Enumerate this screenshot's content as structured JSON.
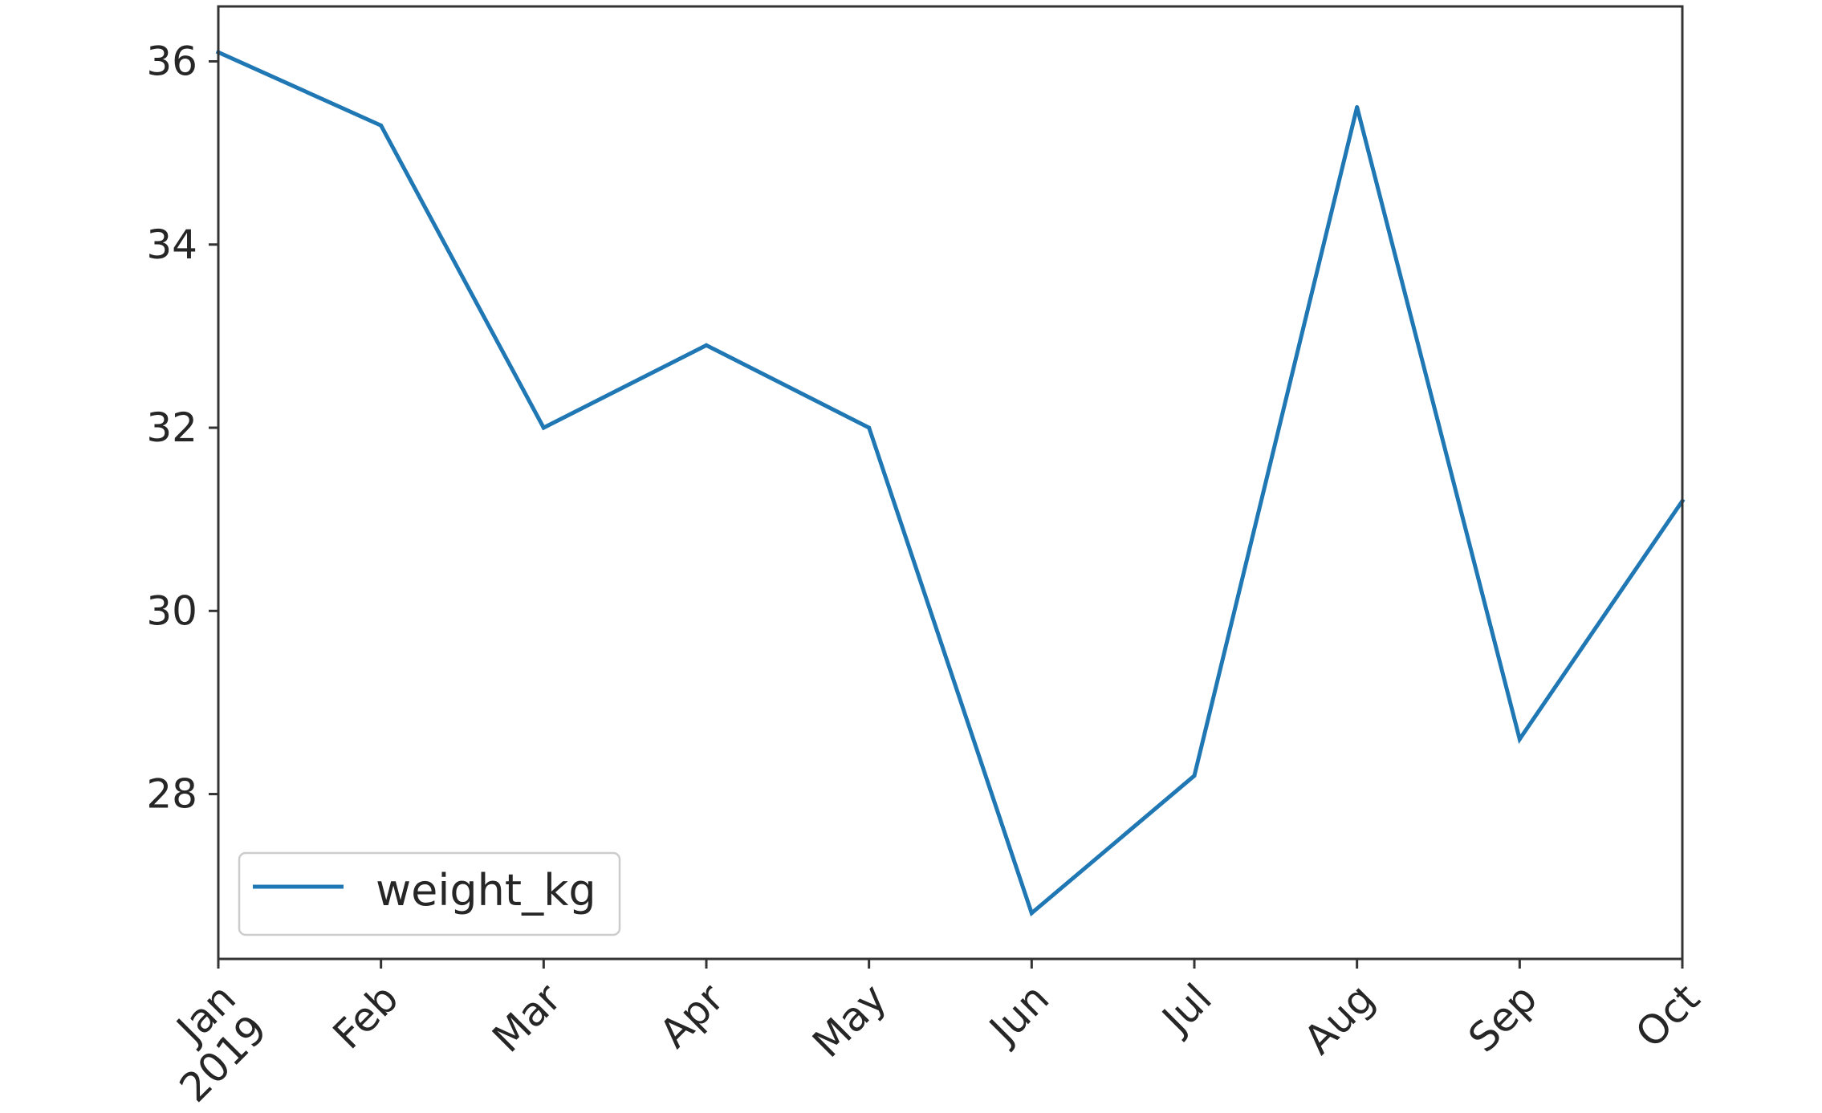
{
  "chart_data": {
    "type": "line",
    "x": [
      "2019-01",
      "2019-02",
      "2019-03",
      "2019-04",
      "2019-05",
      "2019-06",
      "2019-07",
      "2019-08",
      "2019-09",
      "2019-10"
    ],
    "x_tick_labels": [
      "Jan\n2019",
      "Feb",
      "Mar",
      "Apr",
      "May",
      "Jun",
      "Jul",
      "Aug",
      "Sep",
      "Oct"
    ],
    "series": [
      {
        "name": "weight_kg",
        "color": "#1f77b4",
        "values": [
          36.1,
          35.3,
          32.0,
          32.9,
          32.0,
          26.7,
          28.2,
          35.5,
          28.6,
          31.2
        ]
      }
    ],
    "ylim": [
      26.2,
      36.6
    ],
    "y_ticks": [
      28,
      30,
      32,
      34,
      36
    ],
    "title": "",
    "xlabel": "",
    "ylabel": "",
    "legend_position": "bottom-left",
    "grid": false
  }
}
